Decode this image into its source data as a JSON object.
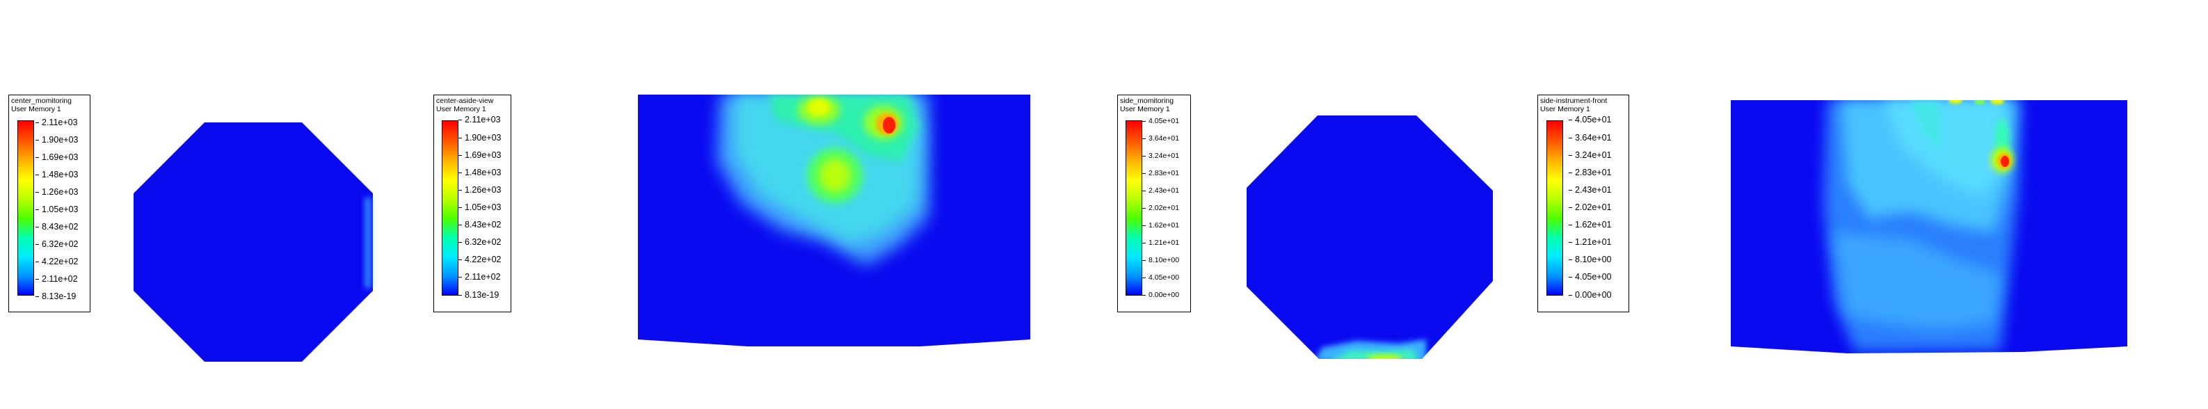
{
  "colors": {
    "background": "#ffffff",
    "mesh_blue": "#0a0af0",
    "colormap": [
      "#0000ff",
      "#0096ff",
      "#00eaff",
      "#00ffb0",
      "#4dff00",
      "#b8ff00",
      "#ffff00",
      "#ffb400",
      "#ff5a00",
      "#ff0000"
    ]
  },
  "legends": [
    {
      "title": "center_momitoring",
      "subtitle": "User Memory 1",
      "ticks": [
        "2.11e+03",
        "1.90e+03",
        "1.69e+03",
        "1.48e+03",
        "1.26e+03",
        "1.05e+03",
        "8.43e+02",
        "6.32e+02",
        "4.22e+02",
        "2.11e+02",
        "8.13e-19"
      ]
    },
    {
      "title": "center-aside-view",
      "subtitle": "User Memory 1",
      "ticks": [
        "2.11e+03",
        "1.90e+03",
        "1.69e+03",
        "1.48e+03",
        "1.26e+03",
        "1.05e+03",
        "8.43e+02",
        "6.32e+02",
        "4.22e+02",
        "2.11e+02",
        "8.13e-19"
      ]
    },
    {
      "title": "side_momitoring",
      "subtitle": "User Memory 1",
      "ticks": [
        "4.05e+01",
        "3.64e+01",
        "3.24e+01",
        "2.83e+01",
        "2.43e+01",
        "2.02e+01",
        "1.62e+01",
        "1.21e+01",
        "8.10e+00",
        "4.05e+00",
        "0.00e+00"
      ]
    },
    {
      "title": "side-instrument-front",
      "subtitle": "User Memory 1",
      "ticks": [
        "4.05e+01",
        "3.64e+01",
        "3.24e+01",
        "2.83e+01",
        "2.43e+01",
        "2.02e+01",
        "1.62e+01",
        "1.21e+01",
        "8.10e+00",
        "4.05e+00",
        "0.00e+00"
      ]
    }
  ]
}
